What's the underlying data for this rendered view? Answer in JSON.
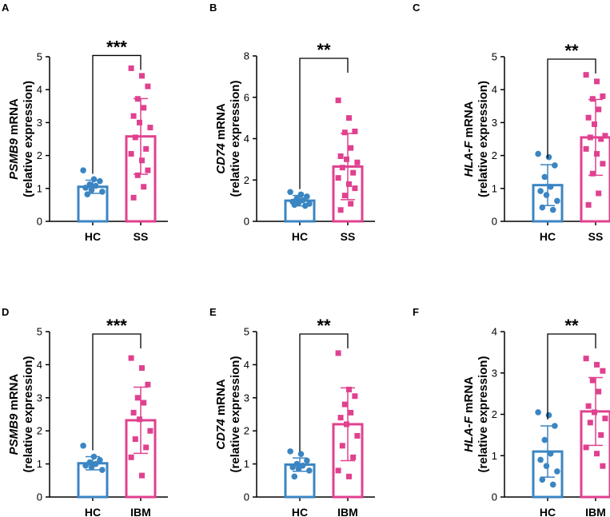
{
  "colors": {
    "hc": "#3b85c2",
    "disease": "#e0418f"
  },
  "chart_data": [
    {
      "panel": "A",
      "type": "bar",
      "categories": [
        "HC",
        "SS"
      ],
      "ylabel_gene": "PSMB9",
      "ylabel_suffix": " mRNA",
      "ylabel_line2": "(relative expression)",
      "ylim": [
        0,
        5
      ],
      "yticks": [
        0,
        1,
        2,
        3,
        4,
        5
      ],
      "significance": "***",
      "series": [
        {
          "name": "HC",
          "mean": 1.05,
          "sd": 0.2,
          "marker": "circle",
          "points": [
            1.55,
            1.28,
            1.22,
            1.12,
            1.08,
            1.02,
            0.95,
            0.9,
            0.82
          ]
        },
        {
          "name": "SS",
          "mean": 2.58,
          "sd": 1.15,
          "marker": "square",
          "points": [
            4.65,
            4.42,
            4.1,
            3.72,
            3.45,
            3.2,
            3.0,
            2.85,
            2.55,
            2.2,
            2.05,
            1.85,
            1.55,
            1.4,
            1.05,
            0.72
          ]
        }
      ]
    },
    {
      "panel": "B",
      "type": "bar",
      "categories": [
        "HC",
        "SS"
      ],
      "ylabel_gene": "CD74",
      "ylabel_suffix": " mRNA",
      "ylabel_line2": "(relative expression)",
      "ylim": [
        0,
        8
      ],
      "yticks": [
        0,
        2,
        4,
        6,
        8
      ],
      "significance": "**",
      "series": [
        {
          "name": "HC",
          "mean": 1.0,
          "sd": 0.25,
          "marker": "circle",
          "points": [
            1.42,
            1.3,
            1.2,
            1.1,
            1.02,
            0.95,
            0.9,
            0.85,
            0.8,
            0.75
          ]
        },
        {
          "name": "SS",
          "mean": 2.65,
          "sd": 1.6,
          "marker": "square",
          "points": [
            5.85,
            5.0,
            4.35,
            4.3,
            3.55,
            3.15,
            3.0,
            2.85,
            2.6,
            2.35,
            2.1,
            1.8,
            1.6,
            1.25,
            0.85,
            0.55
          ]
        }
      ]
    },
    {
      "panel": "C",
      "type": "bar",
      "categories": [
        "HC",
        "SS"
      ],
      "ylabel_gene": "HLA-F",
      "ylabel_suffix": " mRNA",
      "ylabel_line2": "(relative expression)",
      "ylim": [
        0,
        5
      ],
      "yticks": [
        0,
        1,
        2,
        3,
        4,
        5
      ],
      "significance": "**",
      "series": [
        {
          "name": "HC",
          "mean": 1.1,
          "sd": 0.62,
          "marker": "circle",
          "points": [
            2.05,
            1.95,
            1.7,
            1.35,
            1.05,
            0.92,
            0.8,
            0.62,
            0.42,
            0.35
          ]
        },
        {
          "name": "SS",
          "mean": 2.55,
          "sd": 1.15,
          "marker": "square",
          "points": [
            4.45,
            4.25,
            3.8,
            3.72,
            3.4,
            3.15,
            2.95,
            2.6,
            2.55,
            2.5,
            2.2,
            2.05,
            1.75,
            1.45,
            0.85,
            0.5
          ]
        }
      ]
    },
    {
      "panel": "D",
      "type": "bar",
      "categories": [
        "HC",
        "IBM"
      ],
      "ylabel_gene": "PSMB9",
      "ylabel_suffix": " mRNA",
      "ylabel_line2": "(relative expression)",
      "ylim": [
        0,
        5
      ],
      "yticks": [
        0,
        1,
        2,
        3,
        4,
        5
      ],
      "significance": "***",
      "series": [
        {
          "name": "HC",
          "mean": 1.02,
          "sd": 0.2,
          "marker": "circle",
          "points": [
            1.55,
            1.22,
            1.12,
            1.05,
            1.0,
            0.95,
            0.9,
            0.82
          ]
        },
        {
          "name": "IBM",
          "mean": 2.32,
          "sd": 1.0,
          "marker": "square",
          "points": [
            4.2,
            3.9,
            3.4,
            3.0,
            2.85,
            2.55,
            2.35,
            2.0,
            1.75,
            1.5,
            1.2,
            0.65
          ]
        }
      ]
    },
    {
      "panel": "E",
      "type": "bar",
      "categories": [
        "HC",
        "IBM"
      ],
      "ylabel_gene": "CD74",
      "ylabel_suffix": " mRNA",
      "ylabel_line2": "(relative expression)",
      "ylim": [
        0,
        5
      ],
      "yticks": [
        0,
        1,
        2,
        3,
        4,
        5
      ],
      "significance": "**",
      "series": [
        {
          "name": "HC",
          "mean": 0.98,
          "sd": 0.2,
          "marker": "circle",
          "points": [
            1.38,
            1.3,
            1.1,
            1.0,
            0.95,
            0.9,
            0.85,
            0.8,
            0.62
          ]
        },
        {
          "name": "IBM",
          "mean": 2.2,
          "sd": 1.1,
          "marker": "square",
          "points": [
            4.35,
            3.25,
            3.05,
            2.8,
            2.55,
            2.4,
            2.2,
            1.85,
            1.55,
            1.2,
            0.8,
            0.62
          ]
        }
      ]
    },
    {
      "panel": "F",
      "type": "bar",
      "categories": [
        "HC",
        "IBM"
      ],
      "ylabel_gene": "HLA-F",
      "ylabel_suffix": " mRNA",
      "ylabel_line2": "(relative expression)",
      "ylim": [
        0,
        4
      ],
      "yticks": [
        0,
        1,
        2,
        3,
        4
      ],
      "significance": "**",
      "series": [
        {
          "name": "HC",
          "mean": 1.1,
          "sd": 0.62,
          "marker": "circle",
          "points": [
            2.05,
            1.98,
            1.72,
            1.38,
            1.05,
            0.9,
            0.75,
            0.62,
            0.42,
            0.3
          ]
        },
        {
          "name": "IBM",
          "mean": 2.07,
          "sd": 0.82,
          "marker": "square",
          "points": [
            3.35,
            3.2,
            3.05,
            2.82,
            2.55,
            2.2,
            2.05,
            1.9,
            1.8,
            1.5,
            1.2,
            1.05,
            0.75
          ]
        }
      ]
    }
  ]
}
